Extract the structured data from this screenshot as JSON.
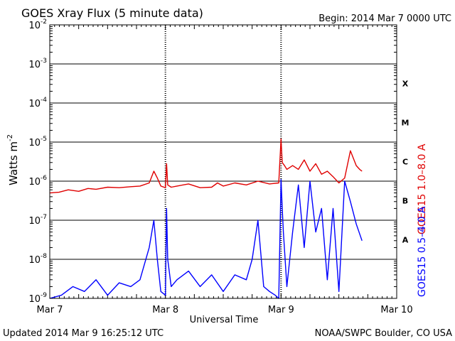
{
  "header": {
    "title": "GOES Xray Flux (5 minute data)",
    "begin": "Begin:  2014 Mar 7 0000 UTC"
  },
  "footer": {
    "updated": "Updated 2014 Mar  9 16:25:12 UTC",
    "credit": "NOAA/SWPC Boulder, CO USA"
  },
  "colors": {
    "long": "#e00000",
    "short": "#0000ff",
    "grid": "#000000",
    "background": "#ffffff"
  },
  "chart_data": {
    "type": "line",
    "title": "GOES Xray Flux (5 minute data)",
    "xlabel": "Universal Time",
    "ylabel": "Watts m",
    "ylabel_sup": "-2",
    "xlim_days": [
      0,
      3
    ],
    "ylim": [
      1e-09,
      0.01
    ],
    "yscale": "log",
    "x_tick_labels": [
      "Mar 7",
      "Mar 8",
      "Mar 9",
      "Mar 10"
    ],
    "y_ticks": [
      {
        "base": "10",
        "exp": "-9"
      },
      {
        "base": "10",
        "exp": "-8"
      },
      {
        "base": "10",
        "exp": "-7"
      },
      {
        "base": "10",
        "exp": "-6"
      },
      {
        "base": "10",
        "exp": "-5"
      },
      {
        "base": "10",
        "exp": "-4"
      },
      {
        "base": "10",
        "exp": "-3"
      },
      {
        "base": "10",
        "exp": "-2"
      }
    ],
    "flare_classes": [
      {
        "label": "A",
        "value": 1e-08
      },
      {
        "label": "B",
        "value": 1e-07
      },
      {
        "label": "C",
        "value": 1e-06
      },
      {
        "label": "M",
        "value": 1e-05
      },
      {
        "label": "X",
        "value": 0.0001
      }
    ],
    "grid": true,
    "series": [
      {
        "name": "GOES15 1.0-8.0 A",
        "axis_label": "GOES15 1.0–8.0 A",
        "color": "#e00000",
        "x": [
          0,
          0.08,
          0.16,
          0.25,
          0.33,
          0.4,
          0.5,
          0.6,
          0.7,
          0.78,
          0.86,
          0.9,
          0.93,
          0.96,
          1.0,
          1.01,
          1.02,
          1.05,
          1.1,
          1.2,
          1.3,
          1.4,
          1.45,
          1.5,
          1.6,
          1.7,
          1.8,
          1.9,
          1.98,
          2.0,
          2.01,
          2.03,
          2.05,
          2.1,
          2.15,
          2.2,
          2.25,
          2.3,
          2.35,
          2.4,
          2.45,
          2.5,
          2.55,
          2.6,
          2.65,
          2.68,
          2.7
        ],
        "y": [
          5e-07,
          5.2e-07,
          6e-07,
          5.5e-07,
          6.5e-07,
          6.2e-07,
          7e-07,
          6.8e-07,
          7.2e-07,
          7.5e-07,
          9e-07,
          1.8e-06,
          1.2e-06,
          7.5e-07,
          6.8e-07,
          2.8e-06,
          8e-07,
          7e-07,
          7.5e-07,
          8.5e-07,
          6.8e-07,
          7e-07,
          9e-07,
          7.5e-07,
          9e-07,
          8e-07,
          1e-06,
          8.5e-07,
          9e-07,
          1.2e-05,
          3e-06,
          2.5e-06,
          2e-06,
          2.5e-06,
          2e-06,
          3.5e-06,
          1.8e-06,
          2.8e-06,
          1.5e-06,
          1.8e-06,
          1.3e-06,
          9e-07,
          1.2e-06,
          6e-06,
          2.5e-06,
          2e-06,
          1.8e-06
        ]
      },
      {
        "name": "GOES15 0.5-4.0 A",
        "axis_label": "GOES15 0.5–4.0 A",
        "color": "#0000ff",
        "x": [
          0,
          0.1,
          0.2,
          0.3,
          0.4,
          0.5,
          0.6,
          0.7,
          0.78,
          0.86,
          0.9,
          0.93,
          0.96,
          1.0,
          1.01,
          1.02,
          1.05,
          1.1,
          1.2,
          1.3,
          1.4,
          1.5,
          1.6,
          1.7,
          1.75,
          1.8,
          1.85,
          1.9,
          1.95,
          1.98,
          2.0,
          2.01,
          2.02,
          2.05,
          2.1,
          2.15,
          2.2,
          2.25,
          2.3,
          2.35,
          2.4,
          2.45,
          2.5,
          2.55,
          2.6,
          2.65,
          2.7
        ],
        "y": [
          1e-09,
          1.2e-09,
          2e-09,
          1.5e-09,
          3e-09,
          1.2e-09,
          2.5e-09,
          2e-09,
          3e-09,
          2e-08,
          1e-07,
          1e-08,
          1.5e-09,
          1.2e-09,
          2e-07,
          1e-08,
          2e-09,
          3e-09,
          5e-09,
          2e-09,
          4e-09,
          1.5e-09,
          4e-09,
          3e-09,
          1e-08,
          1e-07,
          2e-09,
          1.5e-09,
          1.2e-09,
          1e-09,
          1.1e-06,
          2e-07,
          5e-08,
          2e-09,
          5e-08,
          8e-07,
          2e-08,
          1e-06,
          5e-08,
          2e-07,
          3e-09,
          2e-07,
          1.5e-09,
          1e-06,
          3e-07,
          8e-08,
          3e-08
        ]
      }
    ]
  }
}
